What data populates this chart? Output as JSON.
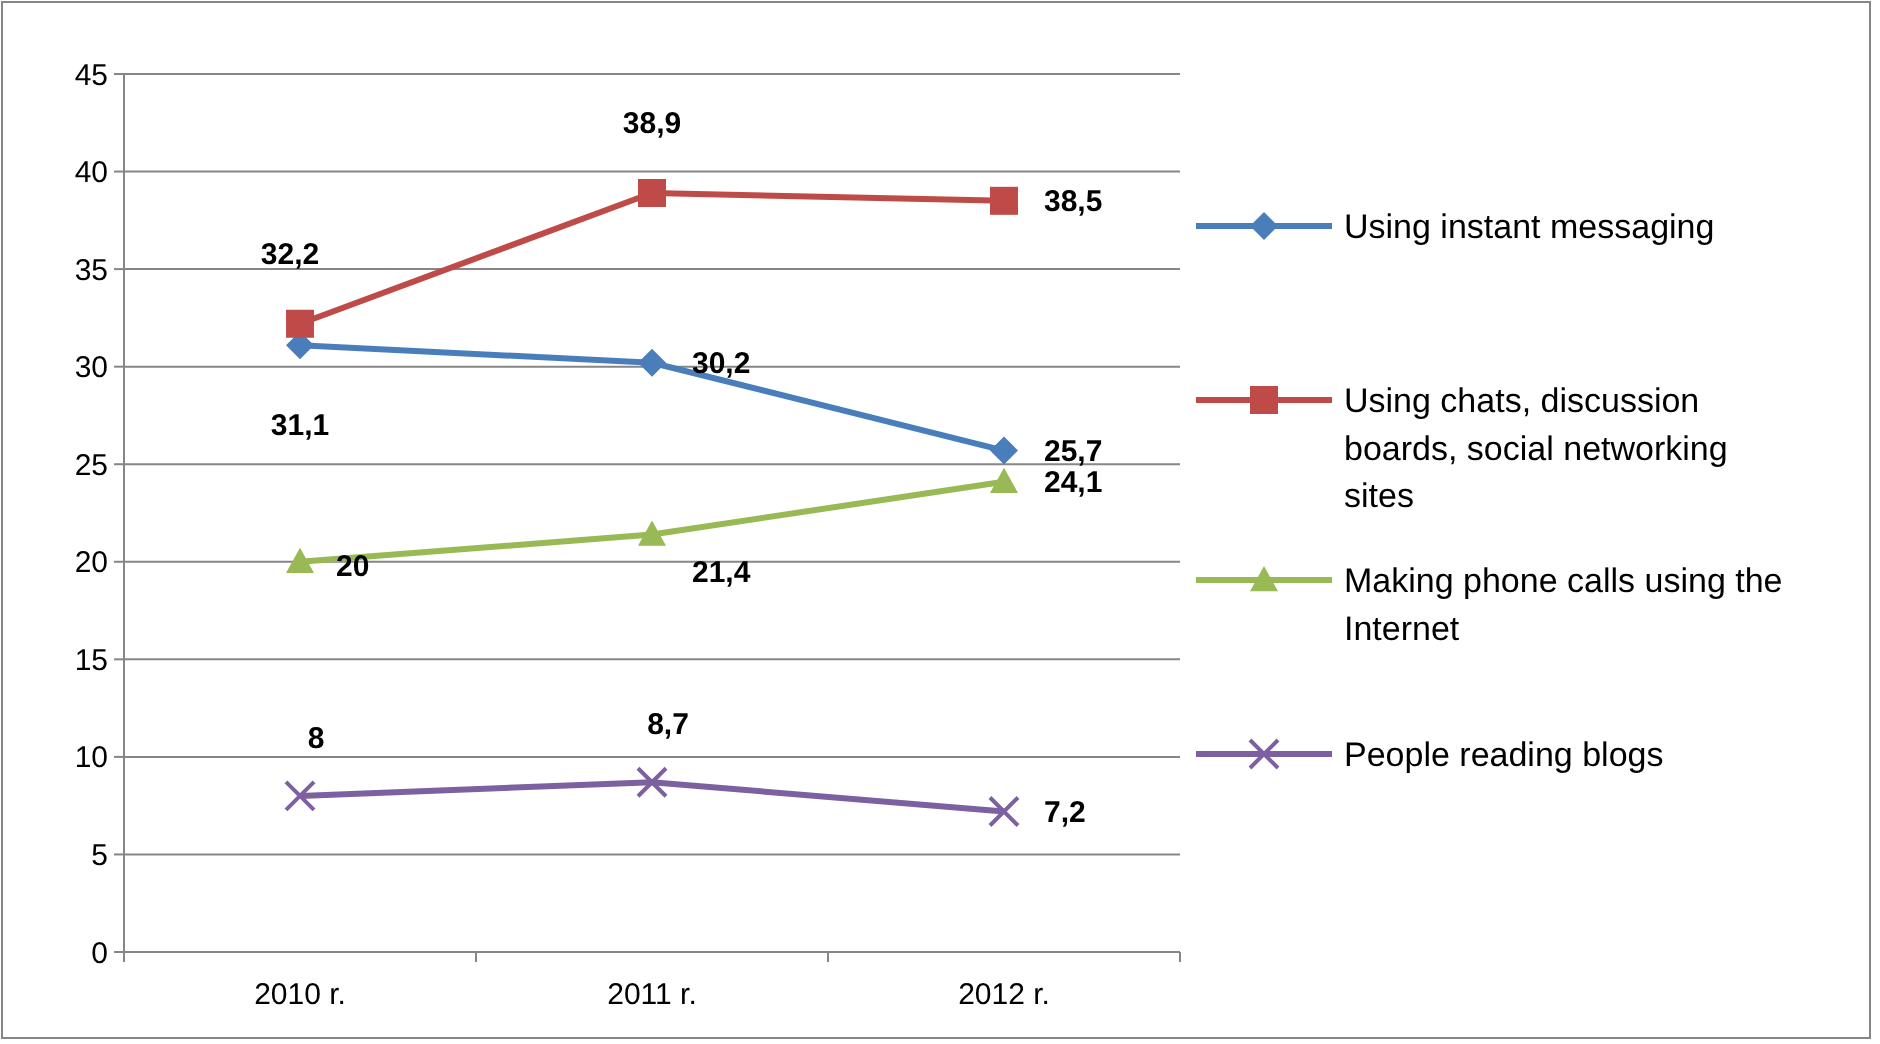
{
  "chart_data": {
    "type": "line",
    "categories": [
      "2010 r.",
      "2011 r.",
      "2012 r."
    ],
    "series": [
      {
        "name": "Using instant messaging",
        "color": "#4a7ebb",
        "marker": "diamond",
        "values": [
          31.1,
          30.2,
          25.7
        ],
        "value_labels": [
          "31,1",
          "30,2",
          "25,7"
        ]
      },
      {
        "name": "Using chats, discussion boards, social networking sites",
        "color": "#be4b48",
        "marker": "square",
        "values": [
          32.2,
          38.9,
          38.5
        ],
        "value_labels": [
          "32,2",
          "38,9",
          "38,5"
        ]
      },
      {
        "name": "Making phone calls using the Internet",
        "color": "#98b954",
        "marker": "triangle",
        "values": [
          20,
          21.4,
          24.1
        ],
        "value_labels": [
          "20",
          "21,4",
          "24,1"
        ]
      },
      {
        "name": "People reading blogs",
        "color": "#7d60a0",
        "marker": "cross",
        "values": [
          8,
          8.7,
          7.2
        ],
        "value_labels": [
          "8",
          "8,7",
          "7,2"
        ]
      }
    ],
    "ylim": [
      0,
      45
    ],
    "yticks": [
      0,
      5,
      10,
      15,
      20,
      25,
      30,
      35,
      40,
      45
    ],
    "grid": "y",
    "legend": "right"
  }
}
